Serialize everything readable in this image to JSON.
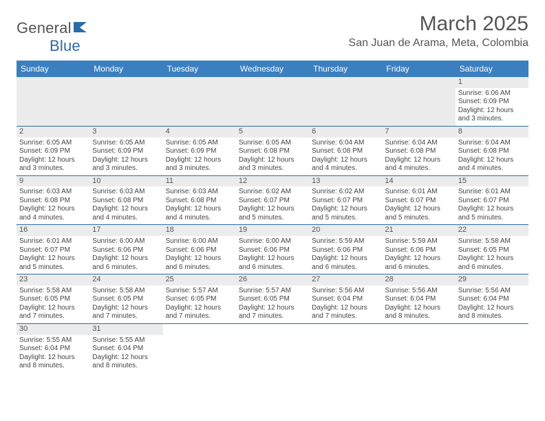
{
  "logo": {
    "text1": "General",
    "text2": "Blue",
    "flag_color": "#2b6aa8"
  },
  "header": {
    "month_title": "March 2025",
    "location": "San Juan de Arama, Meta, Colombia"
  },
  "colors": {
    "header_bar": "#3b7fbf",
    "row_border": "#2b6aa8",
    "blank_bg": "#ececec",
    "text": "#444",
    "muted": "#555"
  },
  "calendar": {
    "days_of_week": [
      "Sunday",
      "Monday",
      "Tuesday",
      "Wednesday",
      "Thursday",
      "Friday",
      "Saturday"
    ],
    "weeks": [
      [
        {
          "blank": true
        },
        {
          "blank": true
        },
        {
          "blank": true
        },
        {
          "blank": true
        },
        {
          "blank": true
        },
        {
          "blank": true
        },
        {
          "num": "1",
          "sunrise": "Sunrise: 6:06 AM",
          "sunset": "Sunset: 6:09 PM",
          "daylight": "Daylight: 12 hours and 3 minutes."
        }
      ],
      [
        {
          "num": "2",
          "sunrise": "Sunrise: 6:05 AM",
          "sunset": "Sunset: 6:09 PM",
          "daylight": "Daylight: 12 hours and 3 minutes."
        },
        {
          "num": "3",
          "sunrise": "Sunrise: 6:05 AM",
          "sunset": "Sunset: 6:09 PM",
          "daylight": "Daylight: 12 hours and 3 minutes."
        },
        {
          "num": "4",
          "sunrise": "Sunrise: 6:05 AM",
          "sunset": "Sunset: 6:09 PM",
          "daylight": "Daylight: 12 hours and 3 minutes."
        },
        {
          "num": "5",
          "sunrise": "Sunrise: 6:05 AM",
          "sunset": "Sunset: 6:08 PM",
          "daylight": "Daylight: 12 hours and 3 minutes."
        },
        {
          "num": "6",
          "sunrise": "Sunrise: 6:04 AM",
          "sunset": "Sunset: 6:08 PM",
          "daylight": "Daylight: 12 hours and 4 minutes."
        },
        {
          "num": "7",
          "sunrise": "Sunrise: 6:04 AM",
          "sunset": "Sunset: 6:08 PM",
          "daylight": "Daylight: 12 hours and 4 minutes."
        },
        {
          "num": "8",
          "sunrise": "Sunrise: 6:04 AM",
          "sunset": "Sunset: 6:08 PM",
          "daylight": "Daylight: 12 hours and 4 minutes."
        }
      ],
      [
        {
          "num": "9",
          "sunrise": "Sunrise: 6:03 AM",
          "sunset": "Sunset: 6:08 PM",
          "daylight": "Daylight: 12 hours and 4 minutes."
        },
        {
          "num": "10",
          "sunrise": "Sunrise: 6:03 AM",
          "sunset": "Sunset: 6:08 PM",
          "daylight": "Daylight: 12 hours and 4 minutes."
        },
        {
          "num": "11",
          "sunrise": "Sunrise: 6:03 AM",
          "sunset": "Sunset: 6:08 PM",
          "daylight": "Daylight: 12 hours and 4 minutes."
        },
        {
          "num": "12",
          "sunrise": "Sunrise: 6:02 AM",
          "sunset": "Sunset: 6:07 PM",
          "daylight": "Daylight: 12 hours and 5 minutes."
        },
        {
          "num": "13",
          "sunrise": "Sunrise: 6:02 AM",
          "sunset": "Sunset: 6:07 PM",
          "daylight": "Daylight: 12 hours and 5 minutes."
        },
        {
          "num": "14",
          "sunrise": "Sunrise: 6:01 AM",
          "sunset": "Sunset: 6:07 PM",
          "daylight": "Daylight: 12 hours and 5 minutes."
        },
        {
          "num": "15",
          "sunrise": "Sunrise: 6:01 AM",
          "sunset": "Sunset: 6:07 PM",
          "daylight": "Daylight: 12 hours and 5 minutes."
        }
      ],
      [
        {
          "num": "16",
          "sunrise": "Sunrise: 6:01 AM",
          "sunset": "Sunset: 6:07 PM",
          "daylight": "Daylight: 12 hours and 5 minutes."
        },
        {
          "num": "17",
          "sunrise": "Sunrise: 6:00 AM",
          "sunset": "Sunset: 6:06 PM",
          "daylight": "Daylight: 12 hours and 6 minutes."
        },
        {
          "num": "18",
          "sunrise": "Sunrise: 6:00 AM",
          "sunset": "Sunset: 6:06 PM",
          "daylight": "Daylight: 12 hours and 6 minutes."
        },
        {
          "num": "19",
          "sunrise": "Sunrise: 6:00 AM",
          "sunset": "Sunset: 6:06 PM",
          "daylight": "Daylight: 12 hours and 6 minutes."
        },
        {
          "num": "20",
          "sunrise": "Sunrise: 5:59 AM",
          "sunset": "Sunset: 6:06 PM",
          "daylight": "Daylight: 12 hours and 6 minutes."
        },
        {
          "num": "21",
          "sunrise": "Sunrise: 5:59 AM",
          "sunset": "Sunset: 6:06 PM",
          "daylight": "Daylight: 12 hours and 6 minutes."
        },
        {
          "num": "22",
          "sunrise": "Sunrise: 5:58 AM",
          "sunset": "Sunset: 6:05 PM",
          "daylight": "Daylight: 12 hours and 6 minutes."
        }
      ],
      [
        {
          "num": "23",
          "sunrise": "Sunrise: 5:58 AM",
          "sunset": "Sunset: 6:05 PM",
          "daylight": "Daylight: 12 hours and 7 minutes."
        },
        {
          "num": "24",
          "sunrise": "Sunrise: 5:58 AM",
          "sunset": "Sunset: 6:05 PM",
          "daylight": "Daylight: 12 hours and 7 minutes."
        },
        {
          "num": "25",
          "sunrise": "Sunrise: 5:57 AM",
          "sunset": "Sunset: 6:05 PM",
          "daylight": "Daylight: 12 hours and 7 minutes."
        },
        {
          "num": "26",
          "sunrise": "Sunrise: 5:57 AM",
          "sunset": "Sunset: 6:05 PM",
          "daylight": "Daylight: 12 hours and 7 minutes."
        },
        {
          "num": "27",
          "sunrise": "Sunrise: 5:56 AM",
          "sunset": "Sunset: 6:04 PM",
          "daylight": "Daylight: 12 hours and 7 minutes."
        },
        {
          "num": "28",
          "sunrise": "Sunrise: 5:56 AM",
          "sunset": "Sunset: 6:04 PM",
          "daylight": "Daylight: 12 hours and 8 minutes."
        },
        {
          "num": "29",
          "sunrise": "Sunrise: 5:56 AM",
          "sunset": "Sunset: 6:04 PM",
          "daylight": "Daylight: 12 hours and 8 minutes."
        }
      ],
      [
        {
          "num": "30",
          "sunrise": "Sunrise: 5:55 AM",
          "sunset": "Sunset: 6:04 PM",
          "daylight": "Daylight: 12 hours and 8 minutes."
        },
        {
          "num": "31",
          "sunrise": "Sunrise: 5:55 AM",
          "sunset": "Sunset: 6:04 PM",
          "daylight": "Daylight: 12 hours and 8 minutes."
        },
        {
          "blank": true
        },
        {
          "blank": true
        },
        {
          "blank": true
        },
        {
          "blank": true
        },
        {
          "blank": true
        }
      ]
    ]
  }
}
